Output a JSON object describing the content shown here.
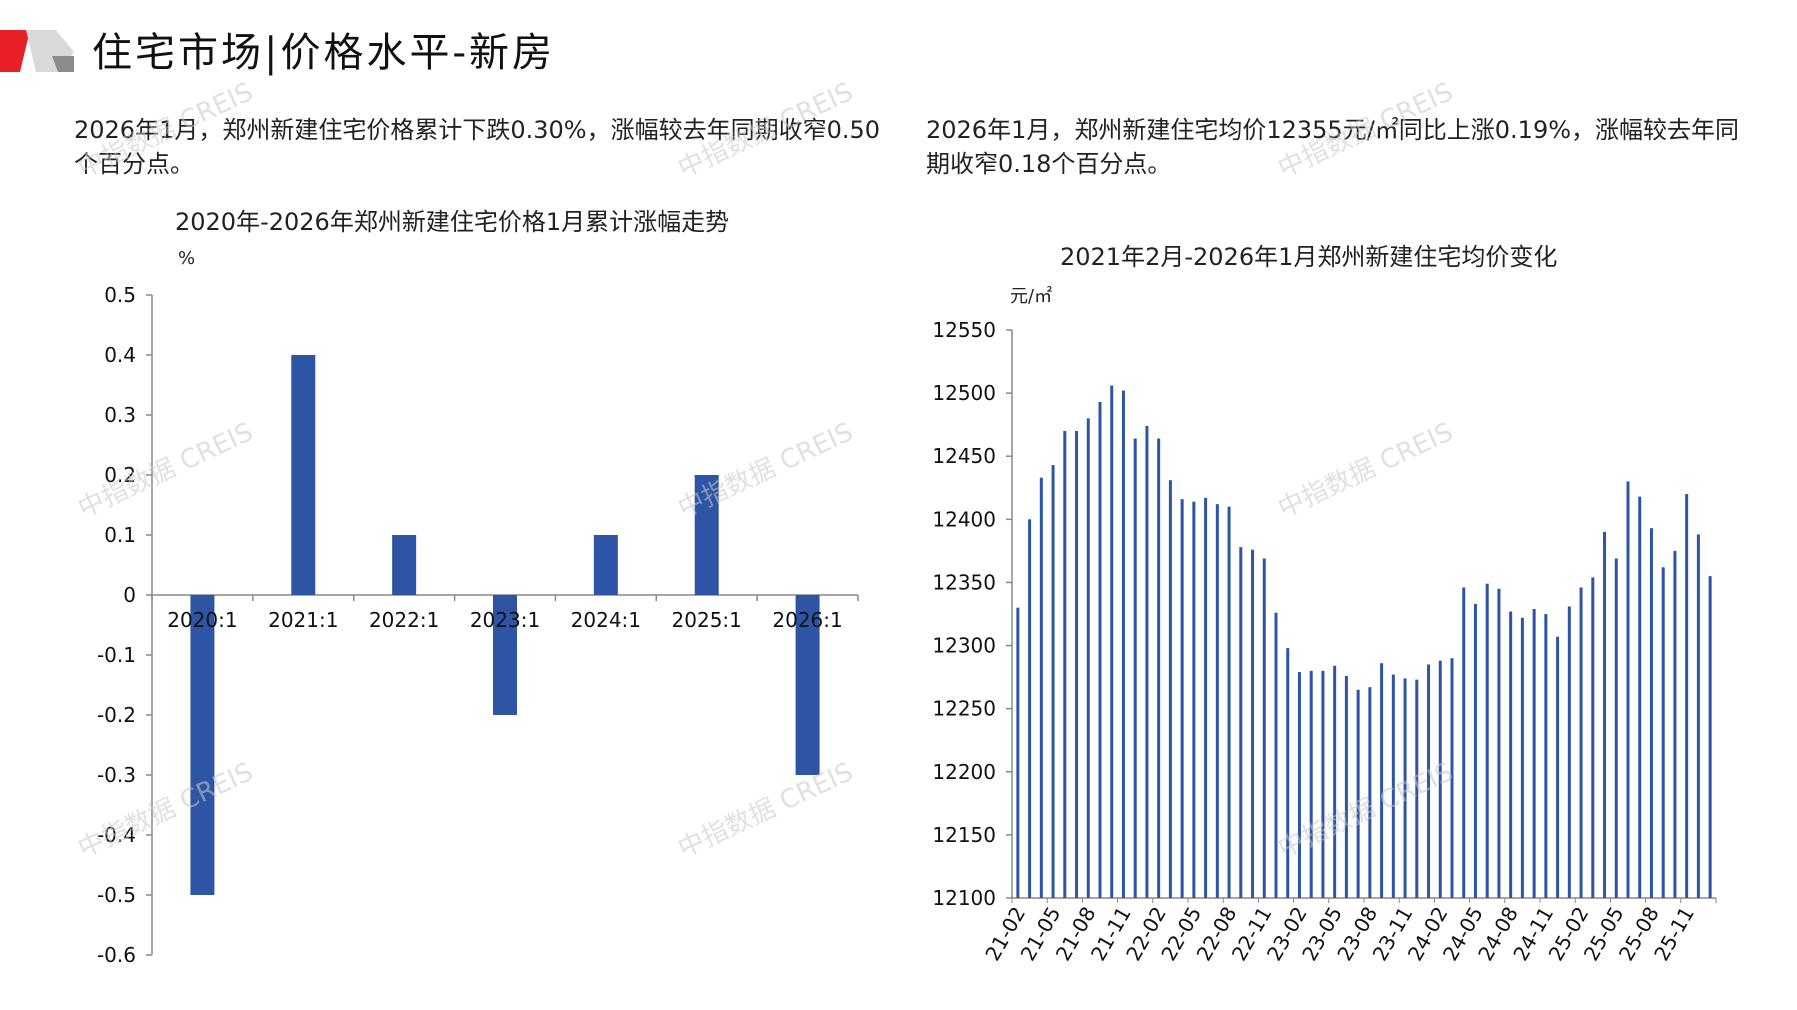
{
  "page": {
    "title": "住宅市场|价格水平-新房",
    "left_desc": "2026年1月，郑州新建住宅价格累计下跌0.30%，涨幅较去年同期收窄0.50个百分点。",
    "right_desc": "2026年1月，郑州新建住宅均价12355元/㎡同比上涨0.19%，涨幅较去年同期收窄0.18个百分点。",
    "watermark": "中指数据 CREIS",
    "colors": {
      "bar": "#2e55a5",
      "logo_red": "#e8202a",
      "logo_gray": "#a0a0a0"
    }
  },
  "chart_data": [
    {
      "type": "bar",
      "title": "2020年-2026年郑州新建住宅价格1月累计涨幅走势",
      "ylabel": "%",
      "categories": [
        "2020:1",
        "2021:1",
        "2022:1",
        "2023:1",
        "2024:1",
        "2025:1",
        "2026:1"
      ],
      "values": [
        -0.5,
        0.4,
        0.1,
        -0.2,
        0.1,
        0.2,
        -0.3
      ],
      "ylim": [
        -0.6,
        0.5
      ],
      "yticks": [
        "0.5",
        "0.4",
        "0.3",
        "0.2",
        "0.1",
        "0",
        "-0.1",
        "-0.2",
        "-0.3",
        "-0.4",
        "-0.5",
        "-0.6"
      ],
      "grid": false
    },
    {
      "type": "bar",
      "title": "2021年2月-2026年1月郑州新建住宅均价变化",
      "ylabel": "元/㎡",
      "x": [
        "21-02",
        "21-03",
        "21-04",
        "21-05",
        "21-06",
        "21-07",
        "21-08",
        "21-09",
        "21-10",
        "21-11",
        "21-12",
        "22-01",
        "22-02",
        "22-03",
        "22-04",
        "22-05",
        "22-06",
        "22-07",
        "22-08",
        "22-09",
        "22-10",
        "22-11",
        "22-12",
        "23-01",
        "23-02",
        "23-03",
        "23-04",
        "23-05",
        "23-06",
        "23-07",
        "23-08",
        "23-09",
        "23-10",
        "23-11",
        "23-12",
        "24-01",
        "24-02",
        "24-03",
        "24-04",
        "24-05",
        "24-06",
        "24-07",
        "24-08",
        "24-09",
        "24-10",
        "24-11",
        "24-12",
        "25-01",
        "25-02",
        "25-03",
        "25-04",
        "25-05",
        "25-06",
        "25-07",
        "25-08",
        "25-09",
        "25-10",
        "25-11",
        "25-12",
        "26-01"
      ],
      "tick_labels": [
        "21-02",
        "21-05",
        "21-08",
        "21-11",
        "22-02",
        "22-05",
        "22-08",
        "22-11",
        "23-02",
        "23-05",
        "23-08",
        "23-11",
        "24-02",
        "24-05",
        "24-08",
        "24-11",
        "25-02",
        "25-05",
        "25-08",
        "25-11"
      ],
      "values": [
        12330,
        12400,
        12433,
        12443,
        12470,
        12470,
        12480,
        12493,
        12506,
        12502,
        12464,
        12474,
        12464,
        12431,
        12416,
        12414,
        12417,
        12412,
        12410,
        12378,
        12376,
        12369,
        12326,
        12298,
        12279,
        12280,
        12280,
        12284,
        12276,
        12265,
        12267,
        12286,
        12277,
        12274,
        12273,
        12285,
        12288,
        12290,
        12346,
        12333,
        12349,
        12345,
        12327,
        12322,
        12329,
        12325,
        12307,
        12331,
        12346,
        12354,
        12390,
        12369,
        12430,
        12418,
        12393,
        12362,
        12375,
        12420,
        12388,
        12355
      ],
      "ylim": [
        12100,
        12550
      ],
      "yticks": [
        "12550",
        "12500",
        "12450",
        "12400",
        "12350",
        "12300",
        "12250",
        "12200",
        "12150",
        "12100"
      ],
      "grid": false
    }
  ]
}
